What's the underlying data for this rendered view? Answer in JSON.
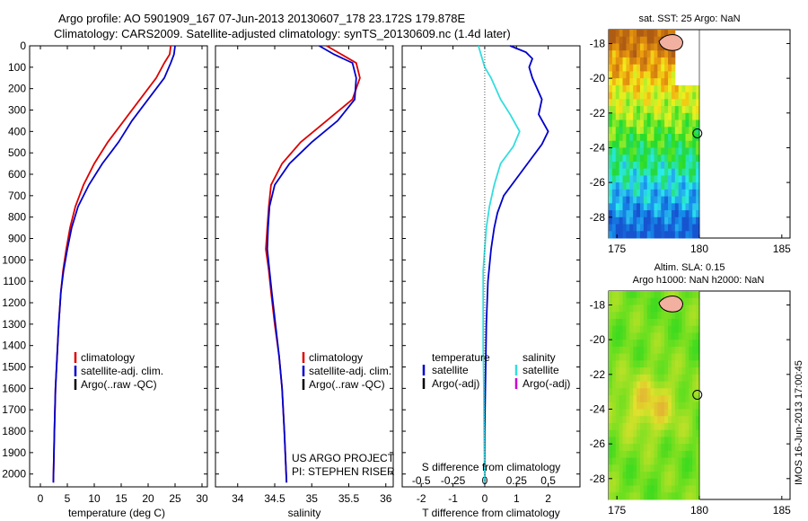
{
  "header": {
    "line1": "Argo profile: AO 5901909_167 07-Jun-2013 20130607_178 23.172S 179.878E",
    "line2": "Climatology: CARS2009. Satellite-adjusted climatology: synTS_20130609.nc (1.4d later)"
  },
  "side_stamp": "IMOS 16-Jun-2013 17:00:45",
  "project_note": {
    "line1": "US ARGO PROJECT",
    "line2": "PI: STEPHEN RISER"
  },
  "colors": {
    "climatology": "#dd0000",
    "satellite": "#0000cc",
    "argo": "#000000",
    "sat_salinity": "#33dddd",
    "argo_sal_adj": "#cc00cc"
  },
  "chart_data": [
    {
      "type": "line",
      "xlabel": "temperature (deg C)",
      "ylabel": "",
      "xlim": [
        -2,
        31
      ],
      "ylim": [
        2060,
        0
      ],
      "xticks": [
        0,
        5,
        10,
        15,
        20,
        25,
        30
      ],
      "yticks": [
        0,
        100,
        200,
        300,
        400,
        500,
        600,
        700,
        800,
        900,
        1000,
        1100,
        1200,
        1300,
        1400,
        1500,
        1600,
        1700,
        1800,
        1900,
        2000
      ],
      "legend": [
        "climatology",
        "satellite-adj. clim.",
        "Argo(..raw -QC)"
      ],
      "series": [
        {
          "name": "climatology",
          "color": "#dd0000",
          "points": [
            [
              24.2,
              0
            ],
            [
              24.0,
              40
            ],
            [
              23.0,
              80
            ],
            [
              21.5,
              150
            ],
            [
              18.5,
              250
            ],
            [
              15.5,
              350
            ],
            [
              12.5,
              450
            ],
            [
              10.0,
              550
            ],
            [
              8.0,
              650
            ],
            [
              6.5,
              750
            ],
            [
              5.5,
              850
            ],
            [
              4.8,
              950
            ],
            [
              4.2,
              1050
            ],
            [
              3.8,
              1150
            ],
            [
              3.4,
              1300
            ],
            [
              3.1,
              1450
            ],
            [
              2.8,
              1600
            ],
            [
              2.6,
              1800
            ],
            [
              2.4,
              2040
            ]
          ]
        },
        {
          "name": "satellite-adj. clim.",
          "color": "#0000cc",
          "points": [
            [
              25.0,
              0
            ],
            [
              24.8,
              40
            ],
            [
              24.2,
              80
            ],
            [
              23.0,
              150
            ],
            [
              20.0,
              250
            ],
            [
              17.0,
              350
            ],
            [
              14.5,
              450
            ],
            [
              11.5,
              550
            ],
            [
              9.0,
              650
            ],
            [
              7.0,
              750
            ],
            [
              5.8,
              850
            ],
            [
              5.0,
              950
            ],
            [
              4.3,
              1050
            ],
            [
              3.8,
              1150
            ],
            [
              3.4,
              1300
            ],
            [
              3.1,
              1450
            ],
            [
              2.8,
              1600
            ],
            [
              2.6,
              1800
            ],
            [
              2.4,
              2040
            ]
          ]
        }
      ]
    },
    {
      "type": "line",
      "xlabel": "salinity",
      "ylabel": "",
      "xlim": [
        33.7,
        36.1
      ],
      "ylim": [
        2060,
        0
      ],
      "xticks": [
        34,
        34.5,
        35,
        35.5,
        36
      ],
      "legend": [
        "climatology",
        "satellite-adj. clim.",
        "Argo(..raw -QC)"
      ],
      "series": [
        {
          "name": "climatology",
          "color": "#dd0000",
          "points": [
            [
              35.2,
              0
            ],
            [
              35.4,
              40
            ],
            [
              35.6,
              80
            ],
            [
              35.65,
              150
            ],
            [
              35.55,
              250
            ],
            [
              35.2,
              350
            ],
            [
              34.85,
              450
            ],
            [
              34.6,
              550
            ],
            [
              34.45,
              650
            ],
            [
              34.42,
              750
            ],
            [
              34.4,
              850
            ],
            [
              34.38,
              950
            ],
            [
              34.42,
              1050
            ],
            [
              34.45,
              1150
            ],
            [
              34.5,
              1300
            ],
            [
              34.56,
              1450
            ],
            [
              34.6,
              1600
            ],
            [
              34.63,
              1800
            ],
            [
              34.66,
              2040
            ]
          ]
        },
        {
          "name": "satellite-adj. clim.",
          "color": "#0000cc",
          "points": [
            [
              35.1,
              0
            ],
            [
              35.3,
              40
            ],
            [
              35.55,
              80
            ],
            [
              35.6,
              150
            ],
            [
              35.58,
              250
            ],
            [
              35.35,
              350
            ],
            [
              35.0,
              450
            ],
            [
              34.7,
              550
            ],
            [
              34.5,
              650
            ],
            [
              34.43,
              750
            ],
            [
              34.41,
              850
            ],
            [
              34.4,
              950
            ],
            [
              34.43,
              1050
            ],
            [
              34.46,
              1150
            ],
            [
              34.51,
              1300
            ],
            [
              34.56,
              1450
            ],
            [
              34.6,
              1600
            ],
            [
              34.63,
              1800
            ],
            [
              34.66,
              2040
            ]
          ]
        }
      ]
    },
    {
      "type": "line",
      "title": "S difference from climatology",
      "xlabel": "T difference from climatology",
      "xlim": [
        -2.6,
        3.0
      ],
      "ylim": [
        2060,
        0
      ],
      "xticks": [
        -2,
        -1,
        0,
        1,
        2
      ],
      "top_ticks": [
        -0.5,
        -0.25,
        0,
        0.25,
        0.5
      ],
      "legend_temperature_header": "temperature",
      "legend_salinity_header": "salinity",
      "legend_satellite": "satellite",
      "legend_argo": "Argo(-adj)",
      "series": [
        {
          "name": "temperature satellite",
          "color": "#0000cc",
          "points": [
            [
              0.8,
              0
            ],
            [
              1.3,
              30
            ],
            [
              1.5,
              60
            ],
            [
              1.4,
              100
            ],
            [
              1.5,
              150
            ],
            [
              1.8,
              250
            ],
            [
              1.7,
              320
            ],
            [
              2.0,
              400
            ],
            [
              1.8,
              460
            ],
            [
              1.5,
              520
            ],
            [
              1.1,
              600
            ],
            [
              0.6,
              700
            ],
            [
              0.4,
              780
            ],
            [
              0.3,
              850
            ],
            [
              0.2,
              950
            ],
            [
              0.1,
              1100
            ],
            [
              0.05,
              1300
            ],
            [
              0.02,
              1600
            ],
            [
              0.0,
              1800
            ],
            [
              0.0,
              2040
            ]
          ]
        },
        {
          "name": "salinity satellite",
          "color": "#33dddd",
          "points": [
            [
              -0.2,
              0
            ],
            [
              -0.1,
              50
            ],
            [
              0.0,
              100
            ],
            [
              0.2,
              150
            ],
            [
              0.5,
              250
            ],
            [
              0.8,
              320
            ],
            [
              1.1,
              400
            ],
            [
              0.9,
              470
            ],
            [
              0.5,
              550
            ],
            [
              0.3,
              650
            ],
            [
              0.15,
              750
            ],
            [
              0.05,
              850
            ],
            [
              0.0,
              950
            ],
            [
              -0.05,
              1050
            ],
            [
              -0.05,
              1200
            ],
            [
              -0.05,
              1400
            ],
            [
              -0.03,
              1600
            ],
            [
              -0.02,
              1800
            ],
            [
              0.0,
              2040
            ]
          ]
        }
      ]
    },
    {
      "type": "heatmap",
      "title": "sat. SST: 25 Argo: NaN",
      "xlim": [
        174.5,
        185.5
      ],
      "ylim": [
        -29.2,
        -17.2
      ],
      "xticks": [
        175,
        180,
        185
      ],
      "yticks": [
        -18,
        -20,
        -22,
        -24,
        -26,
        -28
      ],
      "argo_position": [
        179.878,
        -23.172
      ]
    },
    {
      "type": "heatmap",
      "title": "Altim. SLA: 0.15",
      "subtitle": "Argo h1000: NaN h2000: NaN",
      "xlim": [
        174.5,
        185.5
      ],
      "ylim": [
        -29.2,
        -17.2
      ],
      "xticks": [
        175,
        180,
        185
      ],
      "yticks": [
        -18,
        -20,
        -22,
        -24,
        -26,
        -28
      ],
      "argo_position": [
        179.878,
        -23.172
      ]
    }
  ]
}
